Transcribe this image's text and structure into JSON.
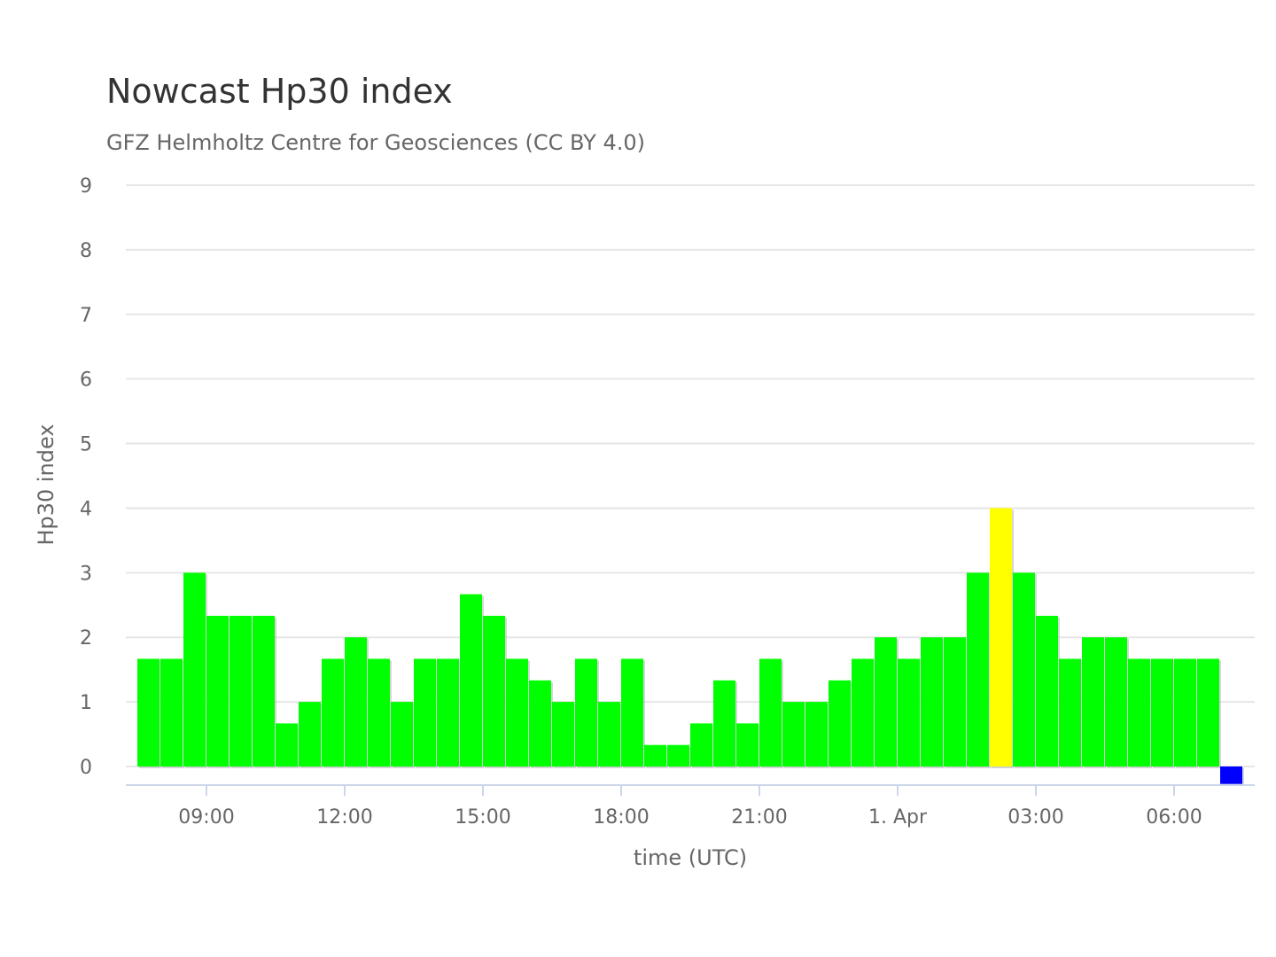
{
  "chart_data": {
    "type": "bar",
    "title": "Nowcast Hp30 index",
    "subtitle": "GFZ Helmholtz Centre for Geosciences (CC BY 4.0)",
    "xlabel": "time (UTC)",
    "ylabel": "Hp30 index",
    "ylim": [
      -0.29,
      9
    ],
    "yticks": [
      0,
      1,
      2,
      3,
      4,
      5,
      6,
      7,
      8,
      9
    ],
    "grid": true,
    "legend": "none",
    "interval_hours": 0.5,
    "start_time": "07:30",
    "xticks": [
      {
        "label": "09:00",
        "hours_from_start": 1.5
      },
      {
        "label": "12:00",
        "hours_from_start": 4.5
      },
      {
        "label": "15:00",
        "hours_from_start": 7.5
      },
      {
        "label": "18:00",
        "hours_from_start": 10.5
      },
      {
        "label": "21:00",
        "hours_from_start": 13.5
      },
      {
        "label": "1. Apr",
        "hours_from_start": 16.5
      },
      {
        "label": "03:00",
        "hours_from_start": 19.5
      },
      {
        "label": "06:00",
        "hours_from_start": 22.5
      }
    ],
    "colors": {
      "quiet": "#00ff00",
      "active": "#ffff00",
      "nowcast_pending": "#0000ff"
    },
    "values": [
      1.667,
      1.667,
      3,
      2.333,
      2.333,
      2.333,
      0.667,
      1,
      1.667,
      2,
      1.667,
      1,
      1.667,
      1.667,
      2.667,
      2.333,
      1.667,
      1.333,
      1,
      1.667,
      1,
      1.667,
      0.333,
      0.333,
      0.667,
      1.333,
      0.667,
      1.667,
      1,
      1,
      1.333,
      1.667,
      2,
      1.667,
      2,
      2,
      3,
      4,
      3,
      2.333,
      1.667,
      2,
      2,
      1.667,
      1.667,
      1.667,
      1.667,
      -0.27
    ],
    "bar_colors": [
      "quiet",
      "quiet",
      "quiet",
      "quiet",
      "quiet",
      "quiet",
      "quiet",
      "quiet",
      "quiet",
      "quiet",
      "quiet",
      "quiet",
      "quiet",
      "quiet",
      "quiet",
      "quiet",
      "quiet",
      "quiet",
      "quiet",
      "quiet",
      "quiet",
      "quiet",
      "quiet",
      "quiet",
      "quiet",
      "quiet",
      "quiet",
      "quiet",
      "quiet",
      "quiet",
      "quiet",
      "quiet",
      "quiet",
      "quiet",
      "quiet",
      "quiet",
      "quiet",
      "active",
      "quiet",
      "quiet",
      "quiet",
      "quiet",
      "quiet",
      "quiet",
      "quiet",
      "quiet",
      "quiet",
      "nowcast_pending"
    ]
  }
}
